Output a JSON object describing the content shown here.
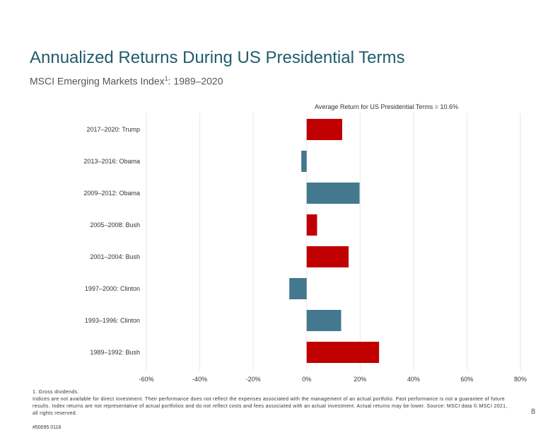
{
  "title": "Annualized Returns During US Presidential Terms",
  "subtitle": "MSCI Emerging Markets Index",
  "subtitle_sup": "1",
  "subtitle_suffix": ": 1989–2020",
  "colors": {
    "title": "#1f5c6b",
    "republican": "#c00000",
    "democrat": "#43788f",
    "grid": "#e6e6e6"
  },
  "chart_data": {
    "type": "bar",
    "orientation": "horizontal",
    "annotation": "Average Return for US Presidential Terms = 10.6%",
    "categories": [
      "2017–2020: Trump",
      "2013–2016: Obama",
      "2009–2012: Obama",
      "2005–2008: Bush",
      "2001–2004: Bush",
      "1997–2000: Clinton",
      "1993–1996: Clinton",
      "1989–1992: Bush"
    ],
    "values": [
      13.3,
      -2.0,
      19.8,
      3.9,
      15.7,
      -6.5,
      12.9,
      27.1
    ],
    "bar_colors": [
      "#c00000",
      "#43788f",
      "#43788f",
      "#c00000",
      "#c00000",
      "#43788f",
      "#43788f",
      "#c00000"
    ],
    "xlim": [
      -60,
      80
    ],
    "xticks": [
      -60,
      -40,
      -20,
      0,
      20,
      40,
      60,
      80
    ],
    "xtick_labels": [
      "-60%",
      "-40%",
      "-20%",
      "0%",
      "20%",
      "40%",
      "60%",
      "80%"
    ],
    "grid": true,
    "xlabel": "",
    "ylabel": ""
  },
  "footnote": "1. Gross dividends.\nIndices are not available for direct investment. Their performance does not reflect the expenses associated with the management of an actual portfolio. Past performance is not a guarantee of future results. Index returns are not representative of actual portfolios and do not reflect costs and fees associated with an actual investment. Actual returns may be lower. Source: MSCI data © MSCI 2021, all rights reserved.",
  "page_number": "8",
  "doc_id": "#50095 0116"
}
